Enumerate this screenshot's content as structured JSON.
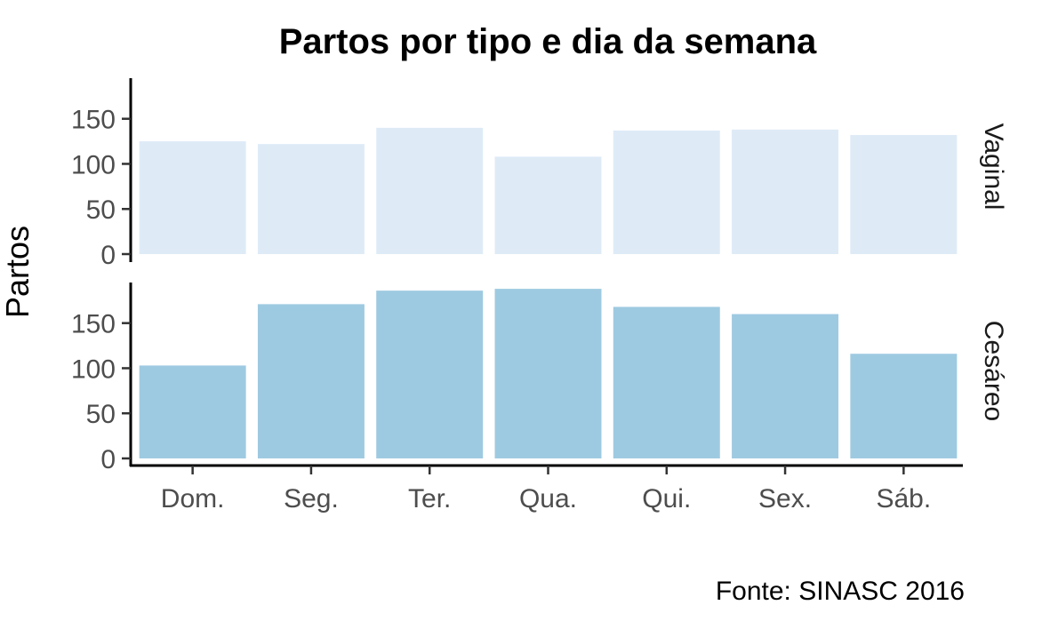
{
  "chart_data": {
    "type": "bar",
    "title": "Partos por tipo e dia da semana",
    "ylabel": "Partos",
    "xlabel": "",
    "caption": "Fonte: SINASC 2016",
    "categories": [
      "Dom.",
      "Seg.",
      "Ter.",
      "Qua.",
      "Qui.",
      "Sex.",
      "Sáb."
    ],
    "ylim": [
      0,
      195
    ],
    "yticks": [
      0,
      50,
      100,
      150
    ],
    "grid": false,
    "legend": "none",
    "facets": [
      {
        "name": "Vaginal",
        "color": "#deebf7",
        "values": [
          125,
          122,
          140,
          108,
          137,
          138,
          132
        ]
      },
      {
        "name": "Cesáreo",
        "color": "#9ecae1",
        "values": [
          103,
          171,
          186,
          188,
          168,
          160,
          116
        ]
      }
    ]
  }
}
